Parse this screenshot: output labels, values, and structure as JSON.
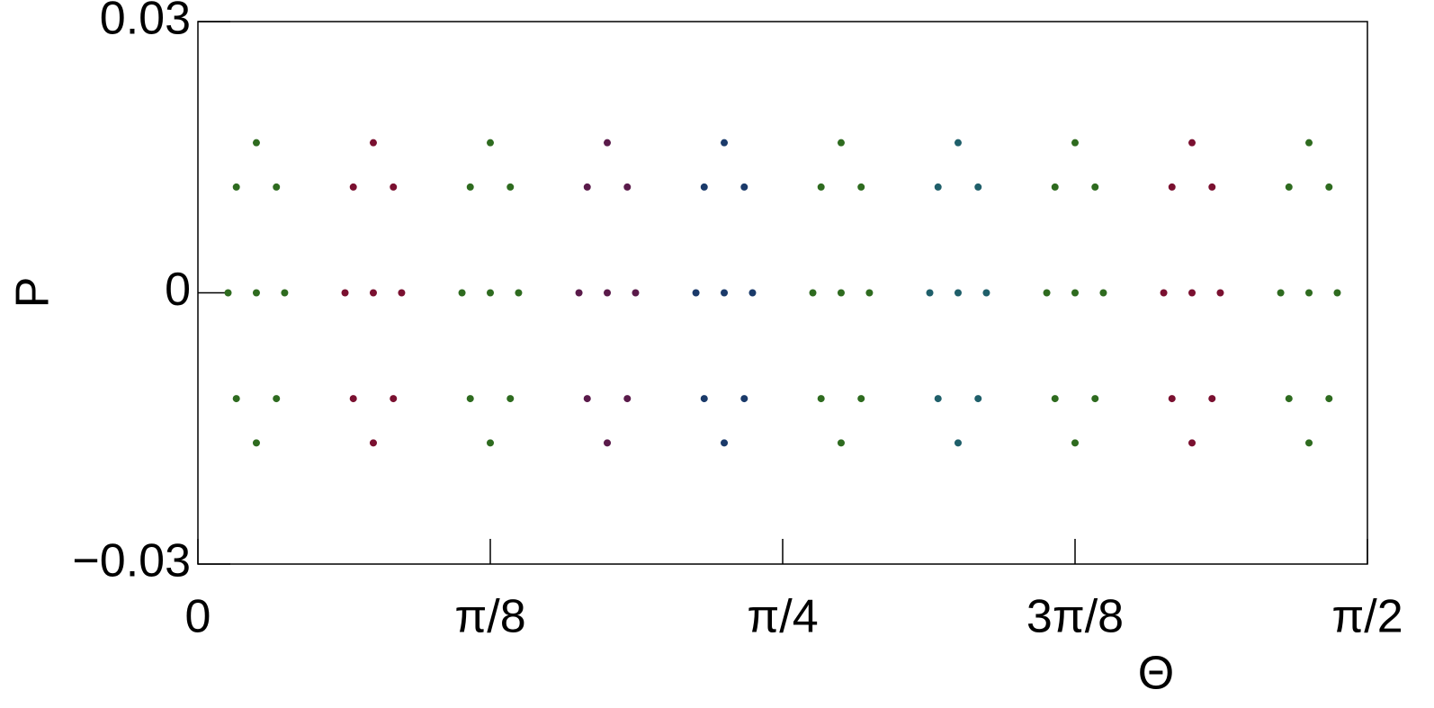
{
  "chart_data": {
    "type": "scatter",
    "xlabel": "Θ",
    "ylabel": "P",
    "xlim": [
      0,
      1.5708
    ],
    "ylim": [
      -0.03,
      0.03
    ],
    "xticks": [
      0,
      {
        "value": 0.3927,
        "label": "π/8"
      },
      {
        "value": 0.7854,
        "label": "π/4"
      },
      {
        "value": 1.1781,
        "label": "3π/8"
      },
      {
        "value": 1.5708,
        "label": "π/2"
      }
    ],
    "yticks": [
      {
        "value": -0.03,
        "label": "−0.03"
      },
      0,
      0.03
    ],
    "grid": false,
    "series": [
      {
        "color": "#2e6b1f",
        "x": [
          0.0785,
          0.1165,
          0.1054,
          0.0785,
          0.0516,
          0.0405,
          0.0516,
          0.0785,
          0.1054
        ],
        "values": [
          0,
          0,
          0.0117,
          0.0166,
          0.0117,
          0,
          -0.0117,
          -0.0166,
          -0.0117
        ]
      },
      {
        "color": "#7a1030",
        "x": [
          0.2356,
          0.2736,
          0.2625,
          0.2356,
          0.2087,
          0.1976,
          0.2087,
          0.2356,
          0.2625
        ],
        "values": [
          0,
          0,
          0.0117,
          0.0166,
          0.0117,
          0,
          -0.0117,
          -0.0166,
          -0.0117
        ]
      },
      {
        "color": "#2e6b1f",
        "x": [
          0.3927,
          0.4307,
          0.4196,
          0.3927,
          0.3658,
          0.3547,
          0.3658,
          0.3927,
          0.4196
        ],
        "values": [
          0,
          0,
          0.0117,
          0.0166,
          0.0117,
          0,
          -0.0117,
          -0.0166,
          -0.0117
        ]
      },
      {
        "color": "#5a1a4a",
        "x": [
          0.5498,
          0.5878,
          0.5767,
          0.5498,
          0.5229,
          0.5118,
          0.5229,
          0.5498,
          0.5767
        ],
        "values": [
          0,
          0,
          0.0117,
          0.0166,
          0.0117,
          0,
          -0.0117,
          -0.0166,
          -0.0117
        ]
      },
      {
        "color": "#1a3a6a",
        "x": [
          0.7069,
          0.7449,
          0.7338,
          0.7069,
          0.68,
          0.6689,
          0.68,
          0.7069,
          0.7338
        ],
        "values": [
          0,
          0,
          0.0117,
          0.0166,
          0.0117,
          0,
          -0.0117,
          -0.0166,
          -0.0117
        ]
      },
      {
        "color": "#2e6b1f",
        "x": [
          0.8639,
          0.9019,
          0.8908,
          0.8639,
          0.837,
          0.8259,
          0.837,
          0.8639,
          0.8908
        ],
        "values": [
          0,
          0,
          0.0117,
          0.0166,
          0.0117,
          0,
          -0.0117,
          -0.0166,
          -0.0117
        ]
      },
      {
        "color": "#1f5f6a",
        "x": [
          1.021,
          1.059,
          1.0479,
          1.021,
          0.9941,
          0.983,
          0.9941,
          1.021,
          1.0479
        ],
        "values": [
          0,
          0,
          0.0117,
          0.0166,
          0.0117,
          0,
          -0.0117,
          -0.0166,
          -0.0117
        ]
      },
      {
        "color": "#2e6b1f",
        "x": [
          1.1781,
          1.2161,
          1.205,
          1.1781,
          1.1512,
          1.1401,
          1.1512,
          1.1781,
          1.205
        ],
        "values": [
          0,
          0,
          0.0117,
          0.0166,
          0.0117,
          0,
          -0.0117,
          -0.0166,
          -0.0117
        ]
      },
      {
        "color": "#7a1030",
        "x": [
          1.3352,
          1.3732,
          1.3621,
          1.3352,
          1.3083,
          1.2972,
          1.3083,
          1.3352,
          1.3621
        ],
        "values": [
          0,
          0,
          0.0117,
          0.0166,
          0.0117,
          0,
          -0.0117,
          -0.0166,
          -0.0117
        ]
      },
      {
        "color": "#2e6b1f",
        "x": [
          1.4923,
          1.5303,
          1.5192,
          1.4923,
          1.4654,
          1.4543,
          1.4654,
          1.4923,
          1.5192
        ],
        "values": [
          0,
          0,
          0.0117,
          0.0166,
          0.0117,
          0,
          -0.0117,
          -0.0166,
          -0.0117
        ]
      }
    ]
  }
}
